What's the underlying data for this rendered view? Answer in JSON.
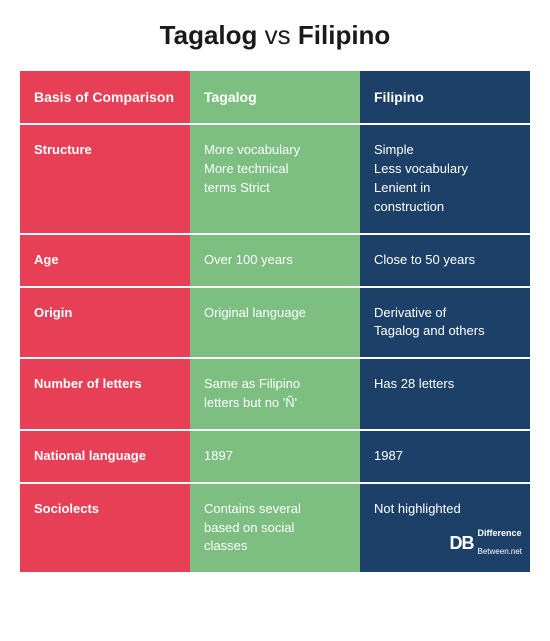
{
  "title": {
    "left": "Tagalog",
    "mid": "vs",
    "right": "Filipino"
  },
  "colors": {
    "basis": "#e74056",
    "colA": "#7cbf81",
    "colB": "#1c4067",
    "text": "#ffffff"
  },
  "headers": {
    "basis": "Basis of Comparison",
    "a": "Tagalog",
    "b": "Filipino"
  },
  "rows": [
    {
      "basis": "Structure",
      "a": "More vocabulary\nMore technical\nterms Strict",
      "b": "Simple\nLess vocabulary\nLenient in\nconstruction"
    },
    {
      "basis": "Age",
      "a": "Over 100 years",
      "b": "Close to 50 years"
    },
    {
      "basis": "Origin",
      "a": "Original language",
      "b": "Derivative of\nTagalog and others"
    },
    {
      "basis": "Number of letters",
      "a": "Same as Filipino\nletters but  no 'Ñ'",
      "b": "Has 28 letters"
    },
    {
      "basis": "National language",
      "a": "1897",
      "b": "1987"
    },
    {
      "basis": "Sociolects",
      "a": "Contains several\nbased on social\nclasses",
      "b": "Not highlighted"
    }
  ],
  "logo": {
    "db": "DB",
    "line1": "Difference",
    "line2": "Between.net"
  }
}
